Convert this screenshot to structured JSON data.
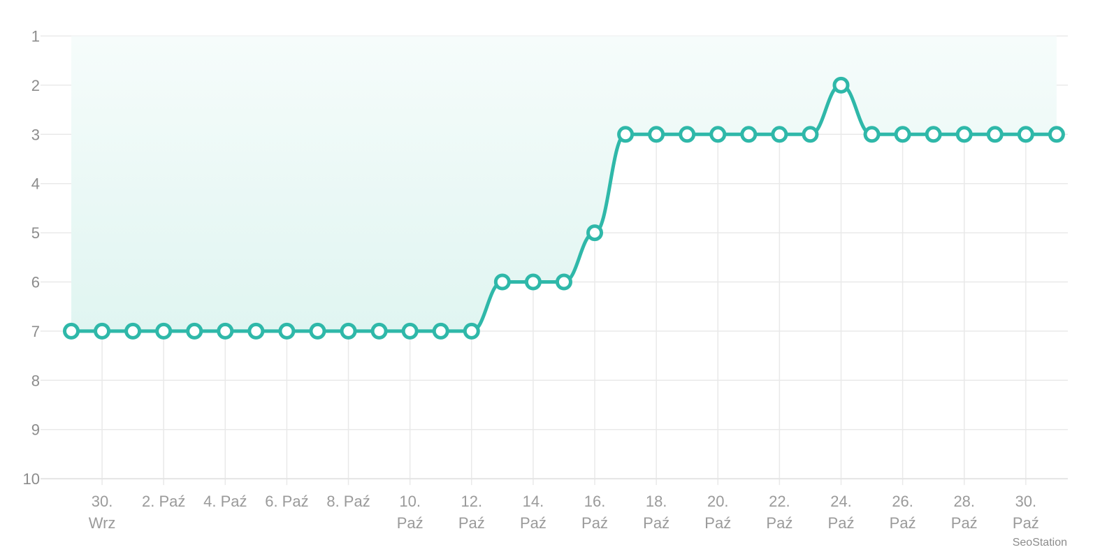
{
  "credit": "SeoStation",
  "colors": {
    "series": "#2fb8a9",
    "area_top": "#f6fcfb",
    "area_bottom": "#e0f5f1",
    "grid": "#e9e9e9"
  },
  "chart_data": {
    "type": "line",
    "y_reversed": true,
    "ylim": [
      1,
      10
    ],
    "yticks": [
      "1",
      "2",
      "3",
      "4",
      "5",
      "6",
      "7",
      "8",
      "9",
      "10"
    ],
    "grid": true,
    "x_dates": [
      "29. Wrz",
      "30. Wrz",
      "1. Paź",
      "2. Paź",
      "3. Paź",
      "4. Paź",
      "5. Paź",
      "6. Paź",
      "7. Paź",
      "8. Paź",
      "9. Paź",
      "10. Paź",
      "11. Paź",
      "12. Paź",
      "13. Paź",
      "14. Paź",
      "15. Paź",
      "16. Paź",
      "17. Paź",
      "18. Paź",
      "19. Paź",
      "20. Paź",
      "21. Paź",
      "22. Paź",
      "23. Paź",
      "24. Paź",
      "25. Paź",
      "26. Paź",
      "27. Paź",
      "28. Paź",
      "29. Paź",
      "30. Paź",
      "31. Paź"
    ],
    "xtick_labels": [
      [
        "30.",
        "Wrz"
      ],
      [
        "2. Paź"
      ],
      [
        "4. Paź"
      ],
      [
        "6. Paź"
      ],
      [
        "8. Paź"
      ],
      [
        "10.",
        "Paź"
      ],
      [
        "12.",
        "Paź"
      ],
      [
        "14.",
        "Paź"
      ],
      [
        "16.",
        "Paź"
      ],
      [
        "18.",
        "Paź"
      ],
      [
        "20.",
        "Paź"
      ],
      [
        "22.",
        "Paź"
      ],
      [
        "24.",
        "Paź"
      ],
      [
        "26.",
        "Paź"
      ],
      [
        "28.",
        "Paź"
      ],
      [
        "30.",
        "Paź"
      ]
    ],
    "series": [
      {
        "values": [
          7,
          7,
          7,
          7,
          7,
          7,
          7,
          7,
          7,
          7,
          7,
          7,
          7,
          7,
          6,
          6,
          6,
          5,
          3,
          3,
          3,
          3,
          3,
          3,
          3,
          2,
          3,
          3,
          3,
          3,
          3,
          3,
          3
        ]
      }
    ]
  }
}
